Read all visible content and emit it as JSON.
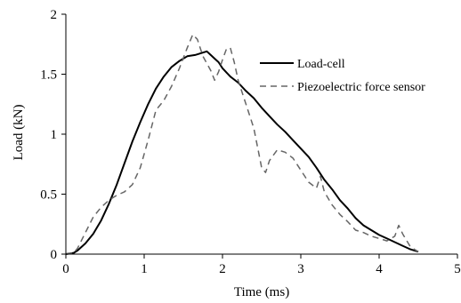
{
  "chart_data": {
    "type": "line",
    "xlabel": "Time (ms)",
    "ylabel": "Load (kN)",
    "xlim": [
      0,
      5
    ],
    "ylim": [
      0,
      2
    ],
    "x_ticks": [
      "0",
      "1",
      "2",
      "3",
      "4",
      "5"
    ],
    "y_ticks": [
      "0",
      "0.5",
      "1",
      "1.5",
      "2"
    ],
    "grid": false,
    "legend_position": "top-right",
    "series": [
      {
        "name": "Load-cell",
        "style": "solid",
        "color": "#000000",
        "x": [
          0.0,
          0.1,
          0.15,
          0.25,
          0.35,
          0.45,
          0.55,
          0.65,
          0.75,
          0.85,
          0.95,
          1.05,
          1.15,
          1.25,
          1.35,
          1.45,
          1.55,
          1.65,
          1.75,
          1.8,
          1.85,
          1.9,
          1.95,
          2.0,
          2.1,
          2.2,
          2.3,
          2.4,
          2.5,
          2.6,
          2.7,
          2.8,
          2.9,
          3.0,
          3.1,
          3.2,
          3.3,
          3.4,
          3.5,
          3.6,
          3.7,
          3.8,
          3.9,
          4.0,
          4.1,
          4.2,
          4.3,
          4.4,
          4.5
        ],
        "y": [
          0.0,
          0.01,
          0.03,
          0.09,
          0.17,
          0.28,
          0.42,
          0.58,
          0.76,
          0.94,
          1.1,
          1.25,
          1.38,
          1.48,
          1.56,
          1.61,
          1.65,
          1.66,
          1.68,
          1.69,
          1.66,
          1.63,
          1.6,
          1.55,
          1.48,
          1.43,
          1.36,
          1.3,
          1.22,
          1.15,
          1.08,
          1.02,
          0.95,
          0.88,
          0.81,
          0.72,
          0.62,
          0.54,
          0.45,
          0.38,
          0.3,
          0.24,
          0.2,
          0.16,
          0.13,
          0.1,
          0.07,
          0.04,
          0.02
        ]
      },
      {
        "name": "Piezoelectric force sensor",
        "style": "dashed",
        "color": "#666666",
        "x": [
          0.0,
          0.1,
          0.15,
          0.25,
          0.35,
          0.45,
          0.55,
          0.65,
          0.75,
          0.85,
          0.95,
          1.05,
          1.15,
          1.25,
          1.35,
          1.45,
          1.55,
          1.62,
          1.68,
          1.75,
          1.85,
          1.9,
          1.95,
          2.0,
          2.05,
          2.1,
          2.15,
          2.2,
          2.3,
          2.4,
          2.5,
          2.55,
          2.6,
          2.7,
          2.8,
          2.9,
          3.0,
          3.1,
          3.2,
          3.25,
          3.3,
          3.4,
          3.5,
          3.6,
          3.7,
          3.8,
          3.9,
          4.0,
          4.1,
          4.2,
          4.25,
          4.3,
          4.4,
          4.5
        ],
        "y": [
          0.0,
          0.01,
          0.05,
          0.18,
          0.31,
          0.39,
          0.45,
          0.49,
          0.52,
          0.58,
          0.72,
          0.95,
          1.2,
          1.28,
          1.4,
          1.55,
          1.72,
          1.83,
          1.79,
          1.65,
          1.53,
          1.45,
          1.52,
          1.62,
          1.71,
          1.72,
          1.6,
          1.45,
          1.25,
          1.05,
          0.72,
          0.68,
          0.78,
          0.87,
          0.85,
          0.8,
          0.7,
          0.6,
          0.55,
          0.65,
          0.52,
          0.41,
          0.33,
          0.27,
          0.2,
          0.18,
          0.15,
          0.13,
          0.11,
          0.15,
          0.24,
          0.17,
          0.06,
          0.02
        ]
      }
    ]
  }
}
